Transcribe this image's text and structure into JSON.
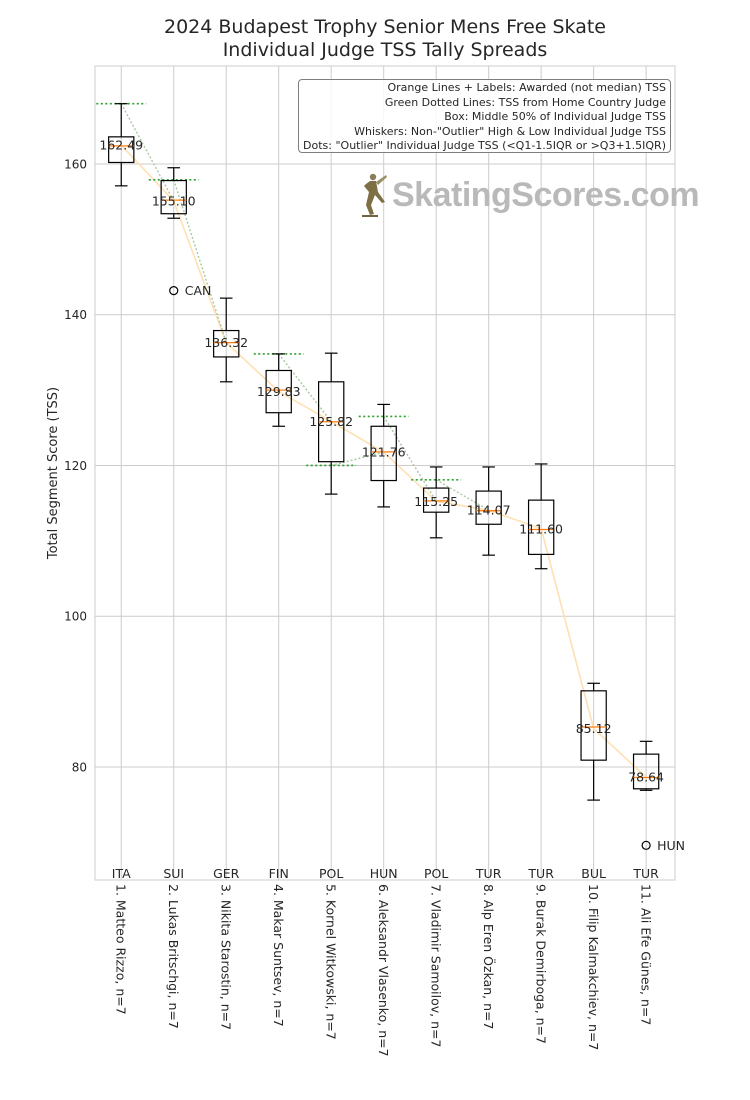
{
  "title": [
    "2024 Budapest Trophy Senior Mens Free Skate",
    "Individual Judge TSS Tally Spreads"
  ],
  "legend_lines": [
    "Orange Lines + Labels: Awarded (not median) TSS",
    "Green Dotted Lines: TSS from Home Country Judge",
    "Box: Middle 50% of Individual Judge TSS",
    "Whiskers: Non-\"Outlier\" High & Low Individual Judge TSS",
    "Dots: \"Outlier\" Individual Judge TSS (<Q1-1.5IQR or >Q3+1.5IQR)"
  ],
  "watermark": "SkatingScores.com",
  "colors": {
    "box": "#000000",
    "median": "#ff7f0e",
    "awarded_line": "#ffe0b2",
    "home_judge": "#2ca02c",
    "grid": "#cccccc"
  },
  "chart_data": {
    "type": "box",
    "ylabel": "Total Segment Score (TSS)",
    "ylim": [
      65,
      173
    ],
    "yticks": [
      80,
      100,
      120,
      140,
      160
    ],
    "grid": true,
    "skaters": [
      {
        "label": "1. Matteo Rizzo, n=7",
        "country": "ITA",
        "awarded": 162.49,
        "awarded_label": "162.49",
        "whisker_low": 157.1,
        "q1": 160.2,
        "median": 162.4,
        "q3": 163.6,
        "whisker_high": 168.0,
        "home_judge": 168.0,
        "outliers": []
      },
      {
        "label": "2. Lukas Britschgi, n=7",
        "country": "SUI",
        "awarded": 155.1,
        "awarded_label": "155.10",
        "whisker_low": 152.8,
        "q1": 153.4,
        "median": 155.2,
        "q3": 157.8,
        "whisker_high": 159.5,
        "home_judge": 157.9,
        "outliers": [
          {
            "value": 143.2,
            "label": "CAN"
          }
        ]
      },
      {
        "label": "3. Nikita Starostin, n=7",
        "country": "GER",
        "awarded": 136.32,
        "awarded_label": "136.32",
        "whisker_low": 131.1,
        "q1": 134.4,
        "median": 136.3,
        "q3": 137.9,
        "whisker_high": 142.2,
        "home_judge": null,
        "outliers": []
      },
      {
        "label": "4. Makar Suntsev, n=7",
        "country": "FIN",
        "awarded": 129.83,
        "awarded_label": "129.83",
        "whisker_low": 125.2,
        "q1": 127.0,
        "median": 130.0,
        "q3": 132.6,
        "whisker_high": 134.8,
        "home_judge": 134.8,
        "outliers": []
      },
      {
        "label": "5. Kornel Witkowski, n=7",
        "country": "POL",
        "awarded": 125.82,
        "awarded_label": "125.82",
        "whisker_low": 116.2,
        "q1": 120.5,
        "median": 125.8,
        "q3": 131.1,
        "whisker_high": 134.9,
        "home_judge": 120.0,
        "outliers": []
      },
      {
        "label": "6. Aleksandr Vlasenko, n=7",
        "country": "HUN",
        "awarded": 121.76,
        "awarded_label": "121.76",
        "whisker_low": 114.5,
        "q1": 118.0,
        "median": 121.8,
        "q3": 125.2,
        "whisker_high": 128.1,
        "home_judge": 126.5,
        "outliers": []
      },
      {
        "label": "7. Vladimir Samoilov, n=7",
        "country": "POL",
        "awarded": 115.25,
        "awarded_label": "115.25",
        "whisker_low": 110.4,
        "q1": 113.8,
        "median": 115.3,
        "q3": 117.0,
        "whisker_high": 119.8,
        "home_judge": 118.1,
        "outliers": []
      },
      {
        "label": "8. Alp Eren Özkan, n=7",
        "country": "TUR",
        "awarded": 114.07,
        "awarded_label": "114.07",
        "whisker_low": 108.1,
        "q1": 112.2,
        "median": 114.0,
        "q3": 116.6,
        "whisker_high": 119.8,
        "home_judge": null,
        "outliers": []
      },
      {
        "label": "9. Burak Demirboga, n=7",
        "country": "TUR",
        "awarded": 111.6,
        "awarded_label": "111.60",
        "whisker_low": 106.3,
        "q1": 108.2,
        "median": 111.5,
        "q3": 115.4,
        "whisker_high": 120.2,
        "home_judge": null,
        "outliers": []
      },
      {
        "label": "10. Filip Kalmakchiev, n=7",
        "country": "BUL",
        "awarded": 85.12,
        "awarded_label": "85.12",
        "whisker_low": 75.6,
        "q1": 80.9,
        "median": 85.3,
        "q3": 90.1,
        "whisker_high": 91.1,
        "home_judge": null,
        "outliers": []
      },
      {
        "label": "11. Ali Efe Günes, n=7",
        "country": "TUR",
        "awarded": 78.64,
        "awarded_label": "78.64",
        "whisker_low": 76.9,
        "q1": 77.1,
        "median": 78.6,
        "q3": 81.7,
        "whisker_high": 83.4,
        "home_judge": null,
        "outliers": [
          {
            "value": 69.6,
            "label": "HUN"
          }
        ]
      }
    ]
  }
}
